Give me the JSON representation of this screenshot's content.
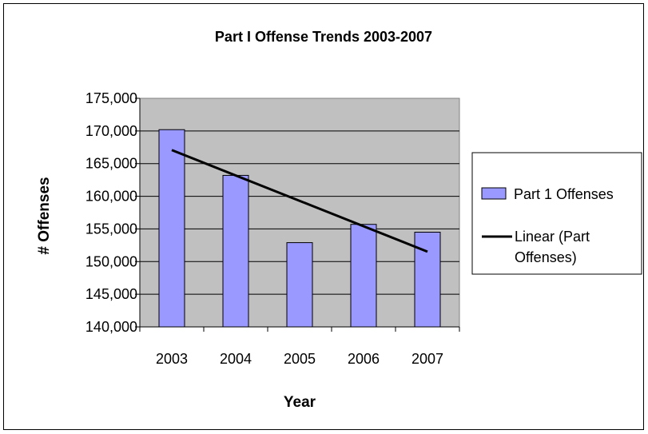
{
  "chart_data": {
    "type": "bar",
    "title": "Part I Offense Trends 2003-2007",
    "xlabel": "Year",
    "ylabel": "# Offenses",
    "categories": [
      "2003",
      "2004",
      "2005",
      "2006",
      "2007"
    ],
    "series": [
      {
        "name": "Part 1 Offenses",
        "values": [
          170200,
          163200,
          152900,
          155700,
          154500
        ],
        "color": "#9999ff"
      }
    ],
    "trendline": {
      "name": "Linear (Part 1 Offenses)",
      "type": "linear",
      "color": "#000000"
    },
    "ylim": [
      140000,
      175000
    ],
    "yticks": [
      140000,
      145000,
      150000,
      155000,
      160000,
      165000,
      170000,
      175000
    ],
    "ytick_labels": [
      "140,000",
      "145,000",
      "150,000",
      "155,000",
      "160,000",
      "165,000",
      "170,000",
      "175,000"
    ],
    "grid": true,
    "plot_background": "#c0c0c0",
    "legend_position": "right"
  }
}
